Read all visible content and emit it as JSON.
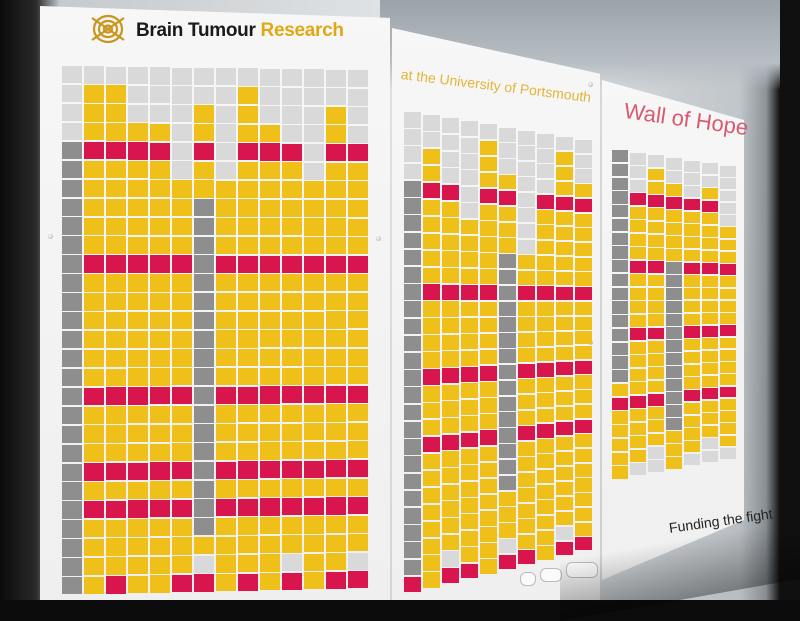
{
  "brand": {
    "name_part1": "Brain Tumour",
    "name_part2": "Research",
    "logo_icon": "brain-spiral-logo-icon"
  },
  "subtitle": "at the University of Portsmouth",
  "wall_title": "Wall of Hope",
  "tagline": "Funding the fight",
  "colors": {
    "yellow_tile": "#f0c01a",
    "red_band": "#d8154d",
    "grey_tile": "#d9d9d9",
    "plaque": "#8e8e8e",
    "panel": "#f5f5f5",
    "logo_gold": "#e0a814",
    "title_red": "#d95a6e",
    "subtitle_gold": "#e3b437"
  }
}
